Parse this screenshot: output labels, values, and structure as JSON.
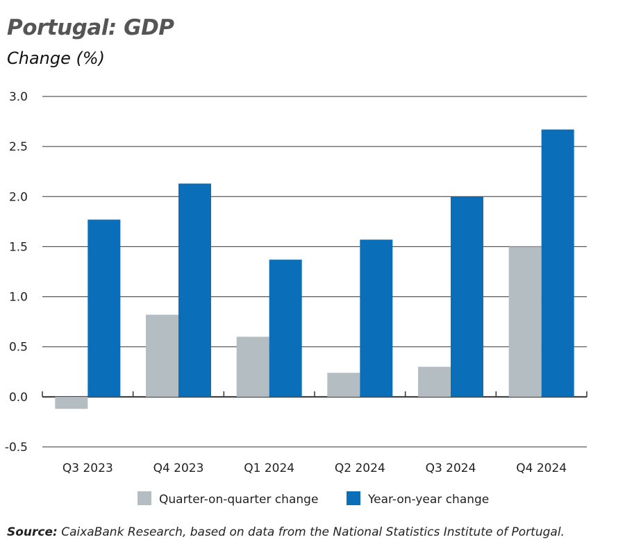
{
  "chart_data": {
    "type": "bar",
    "title": "Portugal: GDP",
    "subtitle": "Change (%)",
    "categories": [
      "Q3 2023",
      "Q4 2023",
      "Q1 2024",
      "Q2 2024",
      "Q3 2024",
      "Q4 2024"
    ],
    "series": [
      {
        "name": "Quarter-on-quarter change",
        "color": "#b3bdc2",
        "values": [
          -0.12,
          0.82,
          0.6,
          0.24,
          0.3,
          1.5
        ]
      },
      {
        "name": "Year-on-year change",
        "color": "#0a6eb8",
        "values": [
          1.77,
          2.13,
          1.37,
          1.57,
          2.0,
          2.67
        ]
      }
    ],
    "ylim": [
      -0.5,
      3.0
    ],
    "yticks": [
      "-0.5",
      "0.0",
      "0.5",
      "1.0",
      "1.5",
      "2.0",
      "2.5",
      "3.0"
    ],
    "grid": true,
    "legend": "bottom"
  },
  "source": {
    "label": "Source:",
    "text": " CaixaBank Research, based on data from the National Statistics Institute of Portugal."
  }
}
